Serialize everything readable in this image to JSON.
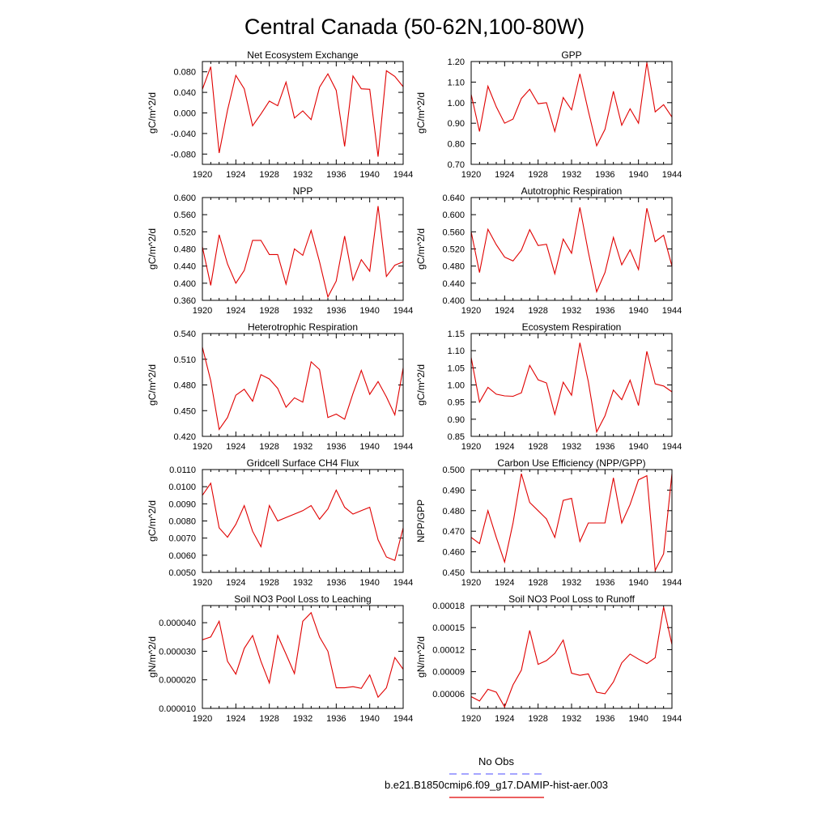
{
  "figure": {
    "title": "Central Canada (50-62N,100-80W)",
    "legend": [
      {
        "label": "No Obs",
        "color": "#6f6fff",
        "style": "dashed"
      },
      {
        "label": "b.e21.B1850cmip6.f09_g17.DAMIP-hist-aer.003",
        "color": "#e00000",
        "style": "solid"
      }
    ],
    "line_color": "#e00000"
  },
  "chart_data": [
    {
      "type": "line",
      "title": "Net Ecosystem Exchange",
      "ylabel": "gC/m^2/d",
      "xlim": [
        1920,
        1944
      ],
      "ylim": [
        -0.1,
        0.1
      ],
      "yticks": [
        -0.08,
        -0.04,
        0.0,
        0.04,
        0.08
      ],
      "ytick_labels": [
        "-0.080",
        "-0.040",
        "0.000",
        "0.040",
        "0.080"
      ],
      "xticks": [
        1920,
        1924,
        1928,
        1932,
        1936,
        1940,
        1944
      ],
      "x": [
        1920,
        1921,
        1922,
        1923,
        1924,
        1925,
        1926,
        1927,
        1928,
        1929,
        1930,
        1931,
        1932,
        1933,
        1934,
        1935,
        1936,
        1937,
        1938,
        1939,
        1940,
        1941,
        1942,
        1943,
        1944
      ],
      "values": [
        0.046,
        0.09,
        -0.078,
        0.005,
        0.073,
        0.047,
        -0.025,
        -0.002,
        0.023,
        0.014,
        0.06,
        -0.01,
        0.004,
        -0.013,
        0.05,
        0.076,
        0.044,
        -0.065,
        0.072,
        0.047,
        0.046,
        -0.085,
        0.082,
        0.071,
        0.051
      ]
    },
    {
      "type": "line",
      "title": "GPP",
      "ylabel": "gC/m^2/d",
      "xlim": [
        1920,
        1944
      ],
      "ylim": [
        0.7,
        1.2
      ],
      "yticks": [
        0.7,
        0.8,
        0.9,
        1.0,
        1.1,
        1.2
      ],
      "ytick_labels": [
        "0.70",
        "0.80",
        "0.90",
        "1.00",
        "1.10",
        "1.20"
      ],
      "xticks": [
        1920,
        1924,
        1928,
        1932,
        1936,
        1940,
        1944
      ],
      "x": [
        1920,
        1921,
        1922,
        1923,
        1924,
        1925,
        1926,
        1927,
        1928,
        1929,
        1930,
        1931,
        1932,
        1933,
        1934,
        1935,
        1936,
        1937,
        1938,
        1939,
        1940,
        1941,
        1942,
        1943,
        1944
      ],
      "values": [
        1.04,
        0.86,
        1.08,
        0.98,
        0.9,
        0.92,
        1.02,
        1.065,
        0.995,
        1.0,
        0.86,
        1.025,
        0.965,
        1.14,
        0.96,
        0.79,
        0.87,
        1.055,
        0.89,
        0.97,
        0.9,
        1.195,
        0.955,
        0.99,
        0.93
      ]
    },
    {
      "type": "line",
      "title": "NPP",
      "ylabel": "gC/m^2/d",
      "xlim": [
        1920,
        1944
      ],
      "ylim": [
        0.36,
        0.6
      ],
      "yticks": [
        0.36,
        0.4,
        0.44,
        0.48,
        0.52,
        0.56,
        0.6
      ],
      "ytick_labels": [
        "0.360",
        "0.400",
        "0.440",
        "0.480",
        "0.520",
        "0.560",
        "0.600"
      ],
      "xticks": [
        1920,
        1924,
        1928,
        1932,
        1936,
        1940,
        1944
      ],
      "x": [
        1920,
        1921,
        1922,
        1923,
        1924,
        1925,
        1926,
        1927,
        1928,
        1929,
        1930,
        1931,
        1932,
        1933,
        1934,
        1935,
        1936,
        1937,
        1938,
        1939,
        1940,
        1941,
        1942,
        1943,
        1944
      ],
      "values": [
        0.485,
        0.395,
        0.513,
        0.445,
        0.4,
        0.43,
        0.5,
        0.5,
        0.467,
        0.467,
        0.398,
        0.48,
        0.465,
        0.523,
        0.45,
        0.368,
        0.405,
        0.51,
        0.407,
        0.455,
        0.428,
        0.58,
        0.416,
        0.442,
        0.45
      ]
    },
    {
      "type": "line",
      "title": "Autotrophic Respiration",
      "ylabel": "gC/m^2/d",
      "xlim": [
        1920,
        1944
      ],
      "ylim": [
        0.4,
        0.64
      ],
      "yticks": [
        0.4,
        0.44,
        0.48,
        0.52,
        0.56,
        0.6,
        0.64
      ],
      "ytick_labels": [
        "0.400",
        "0.440",
        "0.480",
        "0.520",
        "0.560",
        "0.600",
        "0.640"
      ],
      "xticks": [
        1920,
        1924,
        1928,
        1932,
        1936,
        1940,
        1944
      ],
      "x": [
        1920,
        1921,
        1922,
        1923,
        1924,
        1925,
        1926,
        1927,
        1928,
        1929,
        1930,
        1931,
        1932,
        1933,
        1934,
        1935,
        1936,
        1937,
        1938,
        1939,
        1940,
        1941,
        1942,
        1943,
        1944
      ],
      "values": [
        0.56,
        0.465,
        0.566,
        0.53,
        0.501,
        0.492,
        0.517,
        0.565,
        0.528,
        0.531,
        0.462,
        0.543,
        0.51,
        0.617,
        0.513,
        0.42,
        0.465,
        0.547,
        0.483,
        0.518,
        0.472,
        0.615,
        0.537,
        0.552,
        0.48
      ]
    },
    {
      "type": "line",
      "title": "Heterotrophic Respiration",
      "ylabel": "gC/m^2/d",
      "xlim": [
        1920,
        1944
      ],
      "ylim": [
        0.42,
        0.54
      ],
      "yticks": [
        0.42,
        0.45,
        0.48,
        0.51,
        0.54
      ],
      "ytick_labels": [
        "0.420",
        "0.450",
        "0.480",
        "0.510",
        "0.540"
      ],
      "xticks": [
        1920,
        1924,
        1928,
        1932,
        1936,
        1940,
        1944
      ],
      "x": [
        1920,
        1921,
        1922,
        1923,
        1924,
        1925,
        1926,
        1927,
        1928,
        1929,
        1930,
        1931,
        1932,
        1933,
        1934,
        1935,
        1936,
        1937,
        1938,
        1939,
        1940,
        1941,
        1942,
        1943,
        1944
      ],
      "values": [
        0.524,
        0.485,
        0.428,
        0.442,
        0.468,
        0.475,
        0.461,
        0.492,
        0.487,
        0.476,
        0.454,
        0.465,
        0.46,
        0.507,
        0.498,
        0.442,
        0.446,
        0.44,
        0.47,
        0.497,
        0.469,
        0.484,
        0.466,
        0.445,
        0.5
      ]
    },
    {
      "type": "line",
      "title": "Ecosystem Respiration",
      "ylabel": "gC/m^2/d",
      "xlim": [
        1920,
        1944
      ],
      "ylim": [
        0.85,
        1.15
      ],
      "yticks": [
        0.85,
        0.9,
        0.95,
        1.0,
        1.05,
        1.1,
        1.15
      ],
      "ytick_labels": [
        "0.85",
        "0.90",
        "0.95",
        "1.00",
        "1.05",
        "1.10",
        "1.15"
      ],
      "xticks": [
        1920,
        1924,
        1928,
        1932,
        1936,
        1940,
        1944
      ],
      "x": [
        1920,
        1921,
        1922,
        1923,
        1924,
        1925,
        1926,
        1927,
        1928,
        1929,
        1930,
        1931,
        1932,
        1933,
        1934,
        1935,
        1936,
        1937,
        1938,
        1939,
        1940,
        1941,
        1942,
        1943,
        1944
      ],
      "values": [
        1.08,
        0.95,
        0.993,
        0.973,
        0.968,
        0.967,
        0.977,
        1.057,
        1.015,
        1.006,
        0.914,
        1.008,
        0.97,
        1.123,
        1.01,
        0.863,
        0.91,
        0.985,
        0.957,
        1.014,
        0.94,
        1.098,
        1.003,
        0.997,
        0.98
      ]
    },
    {
      "type": "line",
      "title": "Gridcell Surface CH4 Flux",
      "ylabel": "gC/m^2/d",
      "xlim": [
        1920,
        1944
      ],
      "ylim": [
        0.005,
        0.011
      ],
      "yticks": [
        0.005,
        0.006,
        0.007,
        0.008,
        0.009,
        0.01,
        0.011
      ],
      "ytick_labels": [
        "0.0050",
        "0.0060",
        "0.0070",
        "0.0080",
        "0.0090",
        "0.0100",
        "0.0110"
      ],
      "xticks": [
        1920,
        1924,
        1928,
        1932,
        1936,
        1940,
        1944
      ],
      "x": [
        1920,
        1921,
        1922,
        1923,
        1924,
        1925,
        1926,
        1927,
        1928,
        1929,
        1930,
        1931,
        1932,
        1933,
        1934,
        1935,
        1936,
        1937,
        1938,
        1939,
        1940,
        1941,
        1942,
        1943,
        1944
      ],
      "values": [
        0.0095,
        0.0102,
        0.0076,
        0.00705,
        0.0078,
        0.0089,
        0.0074,
        0.0065,
        0.0089,
        0.008,
        0.0082,
        0.0084,
        0.0086,
        0.0089,
        0.0081,
        0.0087,
        0.0098,
        0.0088,
        0.0084,
        0.0086,
        0.0088,
        0.0069,
        0.0059,
        0.0057,
        0.0076
      ]
    },
    {
      "type": "line",
      "title": "Carbon Use Efficiency (NPP/GPP)",
      "ylabel": "NPP/GPP",
      "xlim": [
        1920,
        1944
      ],
      "ylim": [
        0.45,
        0.5
      ],
      "yticks": [
        0.45,
        0.46,
        0.47,
        0.48,
        0.49,
        0.5
      ],
      "ytick_labels": [
        "0.450",
        "0.460",
        "0.470",
        "0.480",
        "0.490",
        "0.500"
      ],
      "xticks": [
        1920,
        1924,
        1928,
        1932,
        1936,
        1940,
        1944
      ],
      "x": [
        1920,
        1921,
        1922,
        1923,
        1924,
        1925,
        1926,
        1927,
        1928,
        1929,
        1930,
        1931,
        1932,
        1933,
        1934,
        1935,
        1936,
        1937,
        1938,
        1939,
        1940,
        1941,
        1942,
        1943,
        1944
      ],
      "values": [
        0.467,
        0.464,
        0.48,
        0.467,
        0.455,
        0.474,
        0.498,
        0.484,
        0.48,
        0.476,
        0.467,
        0.485,
        0.486,
        0.465,
        0.474,
        0.474,
        0.474,
        0.496,
        0.474,
        0.483,
        0.495,
        0.497,
        0.451,
        0.459,
        0.498
      ]
    },
    {
      "type": "line",
      "title": "Soil NO3 Pool Loss to Leaching",
      "ylabel": "gN/m^2/d",
      "xlim": [
        1920,
        1944
      ],
      "ylim": [
        1e-05,
        4.6e-05
      ],
      "yticks": [
        1e-05,
        2e-05,
        3e-05,
        4e-05
      ],
      "ytick_labels": [
        "0.000010",
        "0.000020",
        "0.000030",
        "0.000040"
      ],
      "xticks": [
        1920,
        1924,
        1928,
        1932,
        1936,
        1940,
        1944
      ],
      "x": [
        1920,
        1921,
        1922,
        1923,
        1924,
        1925,
        1926,
        1927,
        1928,
        1929,
        1930,
        1931,
        1932,
        1933,
        1934,
        1935,
        1936,
        1937,
        1938,
        1939,
        1940,
        1941,
        1942,
        1943,
        1944
      ],
      "values": [
        3.4e-05,
        3.5e-05,
        4.05e-05,
        2.65e-05,
        2.2e-05,
        3.1e-05,
        3.55e-05,
        2.65e-05,
        1.89e-05,
        3.55e-05,
        2.9e-05,
        2.22e-05,
        4.05e-05,
        4.35e-05,
        3.5e-05,
        3e-05,
        1.72e-05,
        1.72e-05,
        1.76e-05,
        1.7e-05,
        2.17e-05,
        1.39e-05,
        1.72e-05,
        2.78e-05,
        2.37e-05
      ]
    },
    {
      "type": "line",
      "title": "Soil NO3 Pool Loss to Runoff",
      "ylabel": "gN/m^2/d",
      "xlim": [
        1920,
        1944
      ],
      "ylim": [
        4e-05,
        0.00018
      ],
      "yticks": [
        6e-05,
        9e-05,
        0.00012,
        0.00015,
        0.00018
      ],
      "ytick_labels": [
        "0.00006",
        "0.00009",
        "0.00012",
        "0.00015",
        "0.00018"
      ],
      "xticks": [
        1920,
        1924,
        1928,
        1932,
        1936,
        1940,
        1944
      ],
      "x": [
        1920,
        1921,
        1922,
        1923,
        1924,
        1925,
        1926,
        1927,
        1928,
        1929,
        1930,
        1931,
        1932,
        1933,
        1934,
        1935,
        1936,
        1937,
        1938,
        1939,
        1940,
        1941,
        1942,
        1943,
        1944
      ],
      "values": [
        5.6e-05,
        5e-05,
        6.6e-05,
        6.2e-05,
        4.2e-05,
        7.2e-05,
        9.2e-05,
        0.000146,
        0.0001,
        0.000105,
        0.000115,
        0.000133,
        8.8e-05,
        8.5e-05,
        8.7e-05,
        6.2e-05,
        6e-05,
        7.6e-05,
        0.000102,
        0.000114,
        0.000107,
        0.000101,
        0.000109,
        0.000178,
        0.000127
      ]
    }
  ]
}
